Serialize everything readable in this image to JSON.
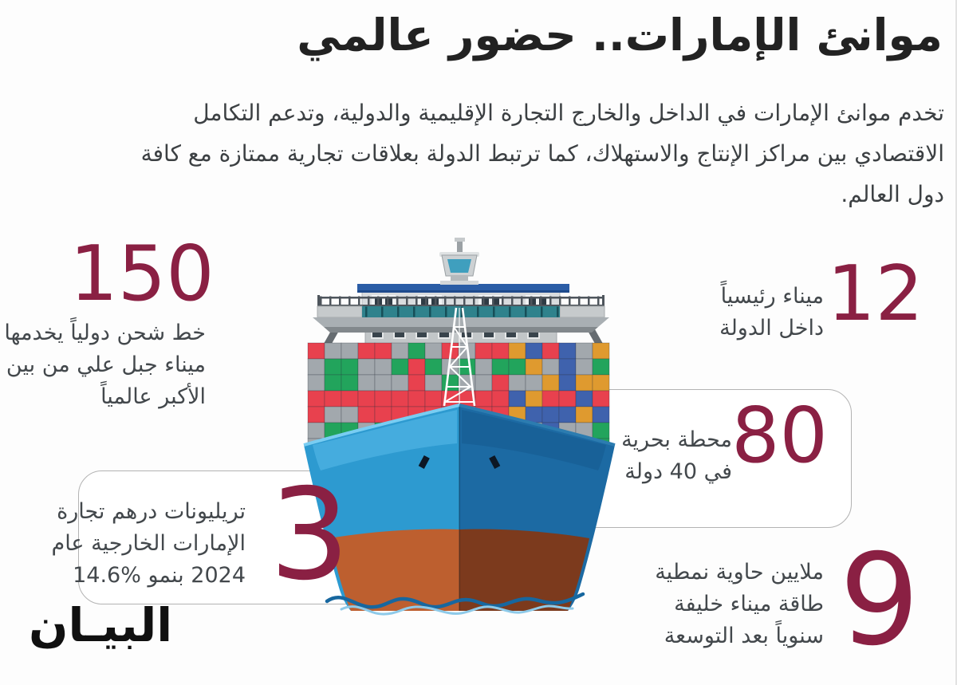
{
  "title": "موانئ الإمارات.. حضور عالمي",
  "intro_lines": [
    "تخدم موانئ الإمارات في الداخل والخارج التجارة الإقليمية والدولية، وتدعم التكامل",
    "الاقتصادي بين مراكز الإنتاج والاستهلاك، كما ترتبط الدولة بعلاقات تجارية ممتازة مع كافة",
    "دول العالم."
  ],
  "stats": {
    "shipping_lines": {
      "value": "150",
      "lines": [
        "خط شحن دولياً يخدمها",
        "ميناء جبل علي من بين",
        "الأكبر عالمياً"
      ]
    },
    "main_ports": {
      "value": "12",
      "lines": [
        "ميناء رئيسياً",
        "داخل الدولة"
      ]
    },
    "marine_terminals": {
      "value": "80",
      "lines": [
        "محطة بحرية",
        "في 40 دولة"
      ]
    },
    "foreign_trade": {
      "value": "3",
      "lines": [
        "تريليونات درهم تجارة",
        "الإمارات الخارجية عام",
        "2024 بنمو %14.6"
      ]
    },
    "khalifa_port_capacity": {
      "value": "9",
      "lines": [
        "ملايين حاوية نمطية",
        "طاقة ميناء خليفة",
        "سنوياً بعد التوسعة"
      ]
    }
  },
  "logo_text": "البيـان",
  "colors": {
    "accent": "#8a2043",
    "title_text": "#222222",
    "body_text": "#3c4043",
    "card_border": "#b3b3b3",
    "container_red": "#e8414e",
    "container_green": "#22a45c",
    "container_gray": "#a2a8ad",
    "container_blue": "#3f62ad",
    "container_orange": "#df9a2f",
    "hull_light_blue": "#2d9ad0",
    "hull_dark_blue": "#1c6aa3",
    "hull_rust_light": "#bd5f2f",
    "hull_rust_dark": "#7c3a1d",
    "wave_blue": "#17679f"
  }
}
